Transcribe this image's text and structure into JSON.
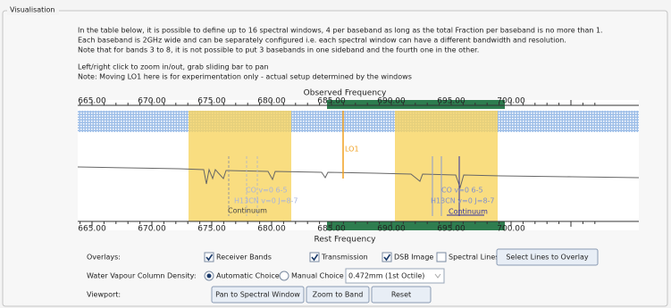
{
  "panel": {
    "legend": "Visualisation",
    "instructions": [
      "In the table below, it is possible to define up to 16 spectral windows, 4 per baseband as long as the total Fraction per baseband is no more than 1.",
      "Each baseband is 2GHz wide and can be separately configured i.e. each spectral window can have a different bandwidth and resolution.",
      "Note that for bands 3 to 8, it is not possible to put 3 basebands in one sideband and the fourth one in the other.",
      "Left/right click to zoom in/out, grab sliding bar to pan",
      "Note: Moving LO1 here is for experimentation only - actual setup determined by the windows"
    ],
    "plot": {
      "top_axis_title": "Observed Frequency",
      "bottom_axis_title": "Rest Frequency",
      "top_ticks": [
        "665.00",
        "670.00",
        "675.00",
        "680.00",
        "685.00",
        "690.00",
        "695.00",
        "700.00"
      ],
      "bottom_ticks": [
        "665.00",
        "670.00",
        "675.00",
        "680.00",
        "685.00",
        "690.00",
        "695.00",
        "700.00"
      ],
      "lo_label": "LO1",
      "left_lines": [
        "CO v=0 6-5",
        "H13CN v=0 J=8-7",
        "Continuum"
      ],
      "right_lines": [
        "CO v=0 6-5",
        "H13CN v=0 J=8-7",
        "Continuum"
      ]
    },
    "overlays": {
      "label": "Overlays:",
      "options": [
        {
          "label": "Receiver Bands",
          "checked": true
        },
        {
          "label": "Transmission",
          "checked": true
        },
        {
          "label": "DSB Image",
          "checked": true
        },
        {
          "label": "Spectral Lines",
          "checked": false
        }
      ],
      "button": "Select Lines to Overlay"
    },
    "water_vapour": {
      "label": "Water Vapour Column Density:",
      "options": [
        {
          "label": "Automatic Choice",
          "selected": true
        },
        {
          "label": "Manual Choice",
          "selected": false
        }
      ],
      "value": "0.472mm (1st Octile)"
    },
    "viewport": {
      "label": "Viewport:",
      "buttons": [
        "Pan to Spectral Window",
        "Zoom to Band",
        "Reset"
      ]
    }
  }
}
